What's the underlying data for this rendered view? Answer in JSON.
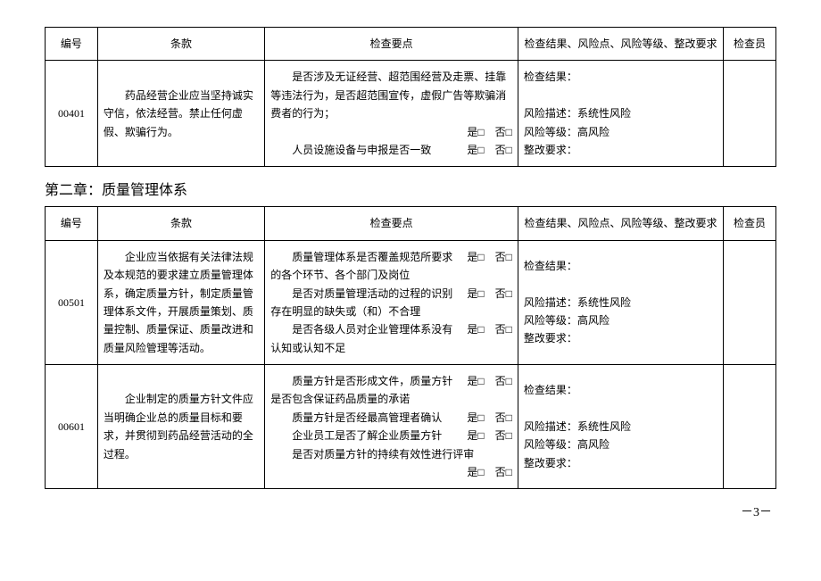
{
  "headers": {
    "id": "编号",
    "clause": "条款",
    "points": "检查要点",
    "result": "检查结果、风险点、风险等级、整改要求",
    "inspector": "检查员"
  },
  "checkbox": {
    "yes": "是□",
    "no": "否□"
  },
  "resultLabels": {
    "result": "检查结果：",
    "riskDesc": "风险描述：",
    "riskLevel": "风险等级：",
    "rectify": "整改要求："
  },
  "riskDescVal": "系统性风险",
  "riskLevelVal": "高风险",
  "table1": {
    "row1": {
      "id": "00401",
      "clause": "药品经营企业应当坚持诚实守信，依法经营。禁止任何虚假、欺骗行为。",
      "point1": "是否涉及无证经营、超范围经营及走票、挂靠等违法行为，是否超范围宣传，虚假广告等欺骗消费者的行为；",
      "point2": "人员设施设备与申报是否一致"
    }
  },
  "chapter2": "第二章：质量管理体系",
  "table2": {
    "row1": {
      "id": "00501",
      "clause": "企业应当依据有关法律法规及本规范的要求建立质量管理体系，确定质量方针，制定质量管理体系文件，开展质量策划、质量控制、质量保证、质量改进和质量风险管理等活动。",
      "point1": "质量管理体系是否覆盖规范所要求的各个环节、各个部门及岗位",
      "point2": "是否对质量管理活动的过程的识别存在明显的缺失或（和）不合理",
      "point3": "是否各级人员对企业管理体系没有认知或认知不足"
    },
    "row2": {
      "id": "00601",
      "clause": "企业制定的质量方针文件应当明确企业总的质量目标和要求，并贯彻到药品经营活动的全过程。",
      "point1": "质量方针是否形成文件，质量方针是否包含保证药品质量的承诺",
      "point2": "质量方针是否经最高管理者确认",
      "point3": "企业员工是否了解企业质量方针",
      "point4": "是否对质量方针的持续有效性进行评审"
    }
  },
  "pageNum": "－3－"
}
